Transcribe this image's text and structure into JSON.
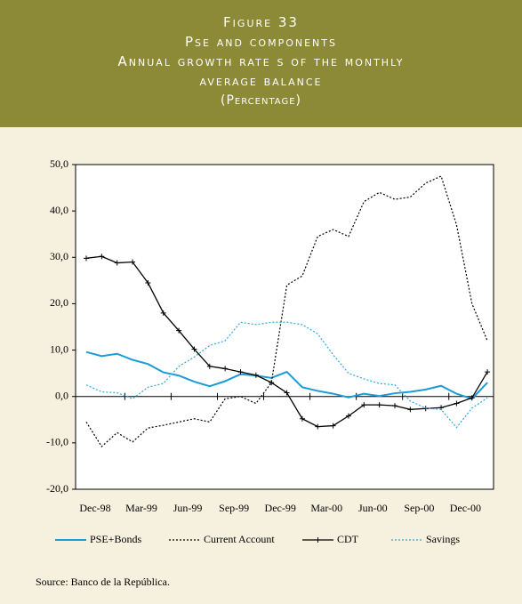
{
  "chart_data": {
    "type": "line",
    "title_lines": [
      "Figure 33",
      "Pse and components",
      "Annual growth rate s of the monthly",
      "average balance"
    ],
    "subtitle": "(Percentage)",
    "source": "Source: Banco de la República.",
    "categories": [
      "Dec-98",
      null,
      null,
      "Mar-99",
      null,
      null,
      "Jun-99",
      null,
      null,
      "Sep-99",
      null,
      null,
      "Dec-99",
      null,
      null,
      "Mar-00",
      null,
      null,
      "Jun-00",
      null,
      null,
      "Sep-00",
      null,
      null,
      "Dec-00",
      null,
      null
    ],
    "series": [
      {
        "name": "PSE+Bonds",
        "color": "#1a9cd8",
        "style": "solid",
        "values": [
          9.6,
          8.7,
          9.2,
          7.9,
          7.0,
          5.2,
          4.5,
          3.2,
          2.2,
          3.3,
          4.8,
          4.5,
          4.0,
          5.3,
          2.0,
          1.2,
          0.6,
          -0.2,
          0.6,
          0.1,
          0.7,
          1.0,
          1.5,
          2.3,
          0.6,
          -0.5,
          3.0
        ]
      },
      {
        "name": "Current Account",
        "color": "#000000",
        "style": "dotted",
        "values": [
          -5.5,
          -10.8,
          -7.8,
          -9.8,
          -6.8,
          -6.2,
          -5.5,
          -4.8,
          -5.5,
          -0.5,
          0.0,
          -1.5,
          3.0,
          24.0,
          26.0,
          34.5,
          36.0,
          34.5,
          42.0,
          44.0,
          42.5,
          43.0,
          46.0,
          47.5,
          37.0,
          20.0,
          12.0
        ]
      },
      {
        "name": "CDT",
        "color": "#000000",
        "style": "marker",
        "values": [
          29.8,
          30.2,
          28.8,
          29.0,
          24.5,
          18.0,
          14.2,
          10.2,
          6.5,
          6.0,
          5.3,
          4.6,
          3.0,
          0.8,
          -4.8,
          -6.5,
          -6.3,
          -4.2,
          -1.8,
          -1.8,
          -2.0,
          -2.8,
          -2.6,
          -2.4,
          -1.5,
          -0.3,
          5.3
        ]
      },
      {
        "name": "Savings",
        "color": "#2aa8e0",
        "style": "dotted",
        "values": [
          2.5,
          1.0,
          0.8,
          -0.5,
          2.0,
          2.8,
          6.5,
          8.5,
          11.0,
          12.0,
          16.0,
          15.5,
          16.0,
          16.0,
          15.5,
          13.5,
          9.0,
          5.0,
          3.8,
          2.8,
          2.5,
          -1.0,
          -2.5,
          -2.8,
          -6.7,
          -2.5,
          -0.3
        ]
      }
    ],
    "ylim": [
      -20,
      50
    ],
    "yticks": [
      {
        "value": -20,
        "label": "-20,0"
      },
      {
        "value": -10,
        "label": "-10,0"
      },
      {
        "value": 0,
        "label": "0,0"
      },
      {
        "value": 10,
        "label": "10,0"
      },
      {
        "value": 20,
        "label": "20,0"
      },
      {
        "value": 30,
        "label": "30,0"
      },
      {
        "value": 40,
        "label": "40,0"
      },
      {
        "value": 50,
        "label": "50,0"
      }
    ],
    "legend": "bottom"
  }
}
